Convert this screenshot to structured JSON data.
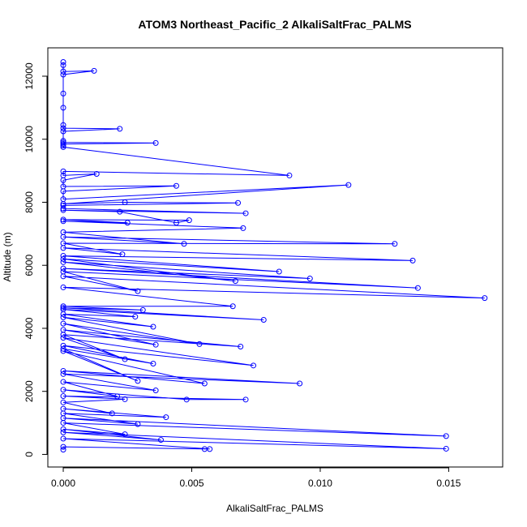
{
  "chart_data": {
    "type": "line",
    "title": "ATOM3 Northeast_Pacific_2 AlkaliSaltFrac_PALMS",
    "xlabel": "AlkaliSaltFrac_PALMS",
    "ylabel": "Altitude (m)",
    "xlim": [
      -0.0006,
      0.0171
    ],
    "ylim": [
      -400,
      12900
    ],
    "x_ticks": [
      0.0,
      0.005,
      0.01,
      0.015
    ],
    "x_tick_labels": [
      "0.000",
      "0.005",
      "0.010",
      "0.015"
    ],
    "y_ticks": [
      0,
      2000,
      4000,
      6000,
      8000,
      10000,
      12000
    ],
    "y_tick_labels": [
      "0",
      "2000",
      "4000",
      "6000",
      "8000",
      "10000",
      "12000"
    ],
    "grid": false,
    "legend": "none",
    "series_color": "#0000ff",
    "series": [
      {
        "x": [
          0.0,
          0.0,
          0.0,
          0.0012,
          0.0,
          0.0,
          0.0,
          0.0,
          0.0,
          0.0022,
          0.0,
          0.0,
          0.0,
          0.0036,
          0.0,
          0.0,
          0.0,
          0.0088,
          0.0,
          0.0,
          0.0013,
          0.0,
          0.0,
          0.0044,
          0.0,
          0.0,
          0.0111,
          0.0,
          0.0024,
          0.0068,
          0.0,
          0.0,
          0.0071,
          0.0,
          0.0022,
          0.0044,
          0.0049,
          0.0,
          0.0025,
          0.0,
          0.007,
          0.0,
          0.0047,
          0.0,
          0.0129,
          0.0,
          0.0023,
          0.0,
          0.0136,
          0.0,
          0.0084,
          0.0,
          0.0067,
          0.0,
          0.0096,
          0.0,
          0.0138,
          0.0,
          0.0029,
          0.0,
          0.0164,
          0.0,
          0.0066,
          0.0,
          0.0031,
          0.0,
          0.0078,
          0.0,
          0.0028,
          0.0,
          0.0035,
          0.0,
          0.0053,
          0.0,
          0.0036,
          0.0,
          0.0069,
          0.0,
          0.0024,
          0.0,
          0.0074,
          0.0,
          0.0035,
          0.0,
          0.0029,
          0.0,
          0.0055,
          0.0,
          0.0092,
          0.0,
          0.0036,
          0.0,
          0.0021,
          0.0,
          0.0048,
          0.0071,
          0.0,
          0.0024,
          0.0,
          0.0019,
          0.0,
          0.004,
          0.0,
          0.0029,
          0.0,
          0.0149,
          0.0,
          0.0024,
          0.0,
          0.0038,
          0.0,
          0.0149,
          0.0,
          0.0057,
          0.0055,
          0.0,
          0.0
        ],
        "y": [
          12450,
          12350,
          12150,
          12170,
          12050,
          11450,
          11000,
          10450,
          10350,
          10330,
          10250,
          9950,
          9900,
          9880,
          9850,
          9800,
          9750,
          8850,
          8980,
          8850,
          8900,
          8700,
          8500,
          8520,
          8350,
          8100,
          8550,
          7950,
          8000,
          7980,
          7900,
          7800,
          7650,
          7750,
          7700,
          7350,
          7430,
          7450,
          7350,
          7400,
          7180,
          7050,
          6680,
          6900,
          6680,
          6700,
          6350,
          6550,
          6150,
          6300,
          5800,
          6200,
          5500,
          6100,
          5580,
          5900,
          5280,
          5800,
          5180,
          5650,
          4960,
          5300,
          4700,
          4700,
          4580,
          4650,
          4270,
          4600,
          4370,
          4450,
          4050,
          4350,
          3500,
          4150,
          3480,
          3950,
          3420,
          3800,
          3020,
          3700,
          2820,
          3450,
          2880,
          3350,
          2330,
          3280,
          2250,
          2650,
          2250,
          2550,
          2030,
          2300,
          1840,
          2050,
          1740,
          1740,
          1850,
          1750,
          1650,
          1300,
          1450,
          1180,
          1300,
          960,
          1150,
          580,
          1000,
          640,
          800,
          460,
          700,
          180,
          500,
          170,
          170,
          240,
          150
        ]
      }
    ]
  }
}
